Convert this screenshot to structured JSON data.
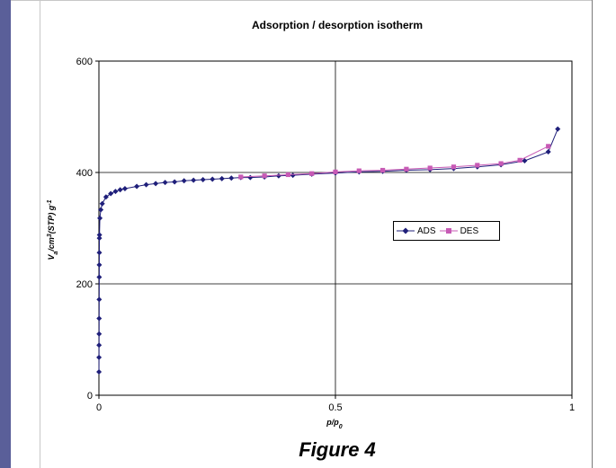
{
  "title": "Adsorption / desorption isotherm",
  "caption": "Figure 4",
  "colors": {
    "ads": "#1f1f7a",
    "des": "#c75ab5",
    "frame": "#5a5f99"
  },
  "chart_data": {
    "type": "line",
    "title": "Adsorption / desorption isotherm",
    "xlabel": "p/p0",
    "ylabel": "Va/cm³(STP) g⁻¹",
    "xlim": [
      0,
      1
    ],
    "ylim": [
      0,
      600
    ],
    "x_ticks": [
      "0",
      "0.5",
      "1"
    ],
    "y_ticks": [
      "0",
      "200",
      "400",
      "600"
    ],
    "grid": true,
    "legend": "center-right",
    "series": [
      {
        "name": "ADS",
        "marker": "diamond",
        "points": [
          [
            0.0001,
            42
          ],
          [
            0.0002,
            68
          ],
          [
            0.0003,
            90
          ],
          [
            0.0004,
            110
          ],
          [
            0.0005,
            138
          ],
          [
            0.0006,
            172
          ],
          [
            0.0007,
            212
          ],
          [
            0.0008,
            234
          ],
          [
            0.0009,
            256
          ],
          [
            0.001,
            282
          ],
          [
            0.0012,
            288
          ],
          [
            0.002,
            318
          ],
          [
            0.004,
            333
          ],
          [
            0.007,
            344
          ],
          [
            0.015,
            356
          ],
          [
            0.025,
            362
          ],
          [
            0.035,
            366
          ],
          [
            0.045,
            369
          ],
          [
            0.055,
            371
          ],
          [
            0.08,
            375
          ],
          [
            0.1,
            378
          ],
          [
            0.12,
            380
          ],
          [
            0.14,
            382
          ],
          [
            0.16,
            383
          ],
          [
            0.18,
            385
          ],
          [
            0.2,
            386
          ],
          [
            0.22,
            387
          ],
          [
            0.24,
            388
          ],
          [
            0.26,
            389
          ],
          [
            0.28,
            390
          ],
          [
            0.3,
            391
          ],
          [
            0.32,
            391
          ],
          [
            0.35,
            392
          ],
          [
            0.38,
            394
          ],
          [
            0.41,
            395
          ],
          [
            0.45,
            397
          ],
          [
            0.5,
            399
          ],
          [
            0.55,
            401
          ],
          [
            0.6,
            402
          ],
          [
            0.65,
            404
          ],
          [
            0.7,
            405
          ],
          [
            0.75,
            407
          ],
          [
            0.8,
            410
          ],
          [
            0.85,
            414
          ],
          [
            0.9,
            421
          ],
          [
            0.95,
            437
          ],
          [
            0.97,
            478
          ]
        ]
      },
      {
        "name": "DES",
        "marker": "square",
        "points": [
          [
            0.3,
            392
          ],
          [
            0.35,
            394
          ],
          [
            0.4,
            396
          ],
          [
            0.45,
            398
          ],
          [
            0.5,
            401
          ],
          [
            0.55,
            403
          ],
          [
            0.6,
            404
          ],
          [
            0.65,
            406
          ],
          [
            0.7,
            408
          ],
          [
            0.75,
            410
          ],
          [
            0.8,
            413
          ],
          [
            0.85,
            416
          ],
          [
            0.89,
            422
          ],
          [
            0.95,
            447
          ]
        ]
      }
    ]
  }
}
